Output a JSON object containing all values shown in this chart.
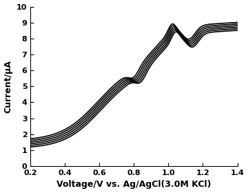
{
  "xlim": [
    0.2,
    1.4
  ],
  "ylim": [
    0,
    10
  ],
  "xlabel": "Voltage/V vs. Ag/AgCl(3.0M KCl)",
  "ylabel": "Current/µA",
  "xticks": [
    0.2,
    0.4,
    0.6,
    0.8,
    1.0,
    1.2,
    1.4
  ],
  "yticks": [
    0,
    1,
    2,
    3,
    4,
    5,
    6,
    7,
    8,
    9,
    10
  ],
  "num_curves": 6,
  "background_color": "#ffffff",
  "line_color": "#000000",
  "line_width": 1.2,
  "xlabel_fontsize": 9,
  "ylabel_fontsize": 9,
  "tick_fontsize": 8,
  "tick_fontweight": "bold",
  "label_fontweight": "bold",
  "amp_offsets": [
    -0.25,
    -0.15,
    -0.05,
    0.05,
    0.15,
    0.25
  ],
  "phase_offsets": [
    -0.01,
    -0.006,
    -0.002,
    0.002,
    0.006,
    0.01
  ]
}
